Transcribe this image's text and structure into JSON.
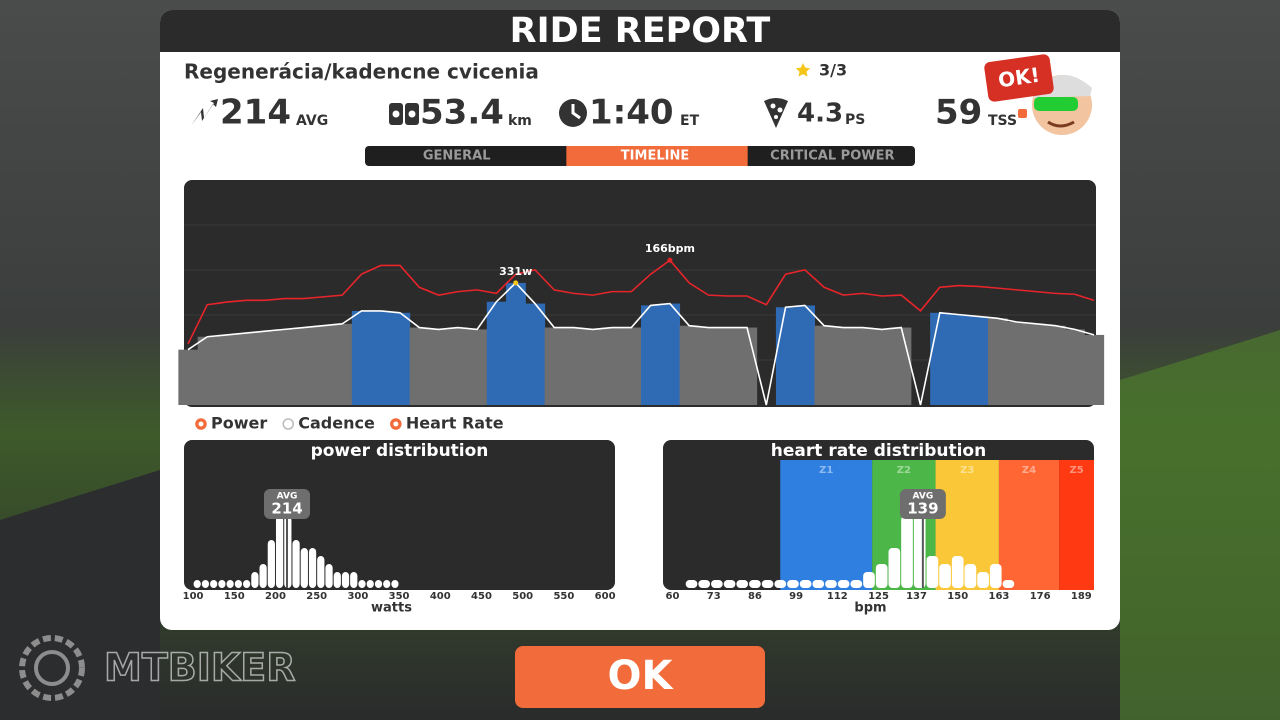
{
  "title": "RIDE REPORT",
  "ride_name": "Regenerácia/kadencne cvicenia",
  "stars": "3/3",
  "badge": "OK!",
  "stats": [
    {
      "value": 214,
      "unit": "AVG"
    },
    {
      "value": 53.4,
      "unit": "km"
    },
    {
      "value": "1:40",
      "unit": "ET"
    },
    {
      "value": 4.3,
      "unit": "PS"
    },
    {
      "value": 59,
      "unit": "TSS"
    }
  ],
  "tabs": [
    "GENERAL",
    "TIMELINE",
    "CRITICAL POWER"
  ],
  "active_tab": 1,
  "timeline": {
    "type": "line",
    "series": [
      {
        "color": "#ffffff",
        "values": [
          150,
          185,
          190,
          195,
          200,
          205,
          210,
          215,
          220,
          255,
          255,
          250,
          210,
          205,
          210,
          205,
          280,
          331,
          275,
          210,
          210,
          205,
          210,
          210,
          270,
          275,
          215,
          210,
          210,
          210,
          0,
          265,
          270,
          215,
          210,
          210,
          205,
          210,
          0,
          250,
          245,
          240,
          235,
          225,
          220,
          215,
          205,
          190
        ]
      },
      {
        "color": "#e8242b",
        "axis": "y2",
        "values": [
          70,
          115,
          118,
          120,
          120,
          122,
          122,
          124,
          126,
          150,
          160,
          160,
          135,
          126,
          130,
          132,
          128,
          150,
          155,
          132,
          128,
          126,
          130,
          130,
          150,
          166,
          140,
          126,
          125,
          125,
          115,
          150,
          155,
          135,
          126,
          128,
          125,
          126,
          108,
          135,
          137,
          136,
          134,
          132,
          130,
          128,
          127,
          120
        ]
      }
    ],
    "ylim": [
      0,
      610
    ],
    "y2lim": [
      0,
      258
    ],
    "annotations": [
      "331w",
      "166bpm"
    ]
  },
  "legend": [
    {
      "name": "Power",
      "on": true
    },
    {
      "name": "Cadence",
      "on": false
    },
    {
      "name": "Heart Rate",
      "on": true
    }
  ],
  "power_distribution": {
    "type": "histogram",
    "title": "power distribution",
    "x_label": "watts",
    "bins": [
      100,
      110,
      120,
      130,
      140,
      150,
      160,
      170,
      180,
      190,
      200,
      210,
      220,
      230,
      240,
      250,
      260,
      270,
      280,
      290,
      300,
      310,
      320,
      330,
      340,
      350
    ],
    "values": [
      1,
      1,
      1,
      1,
      1,
      1,
      1,
      2,
      3,
      6,
      9,
      9,
      6,
      5,
      5,
      4,
      3,
      2,
      2,
      2,
      1,
      1,
      1,
      1,
      1
    ],
    "xlim": [
      89,
      612
    ],
    "ylim": [
      0,
      11
    ],
    "xticks": [
      100,
      150,
      200,
      250,
      300,
      350,
      400,
      450,
      500,
      550,
      600
    ],
    "avg_label": "AVG",
    "avg": 214,
    "color": "#ffffff"
  },
  "hr_distribution": {
    "type": "histogram",
    "title": "heart rate distribution",
    "x_label": "bpm",
    "bins": [
      64,
      68,
      72,
      76,
      80,
      84,
      88,
      92,
      96,
      100,
      104,
      108,
      112,
      116,
      120,
      124,
      128,
      132,
      136,
      140,
      144,
      148,
      152,
      156,
      160,
      164,
      168
    ],
    "values": [
      1,
      1,
      1,
      1,
      1,
      1,
      1,
      1,
      1,
      1,
      1,
      1,
      1,
      1,
      2,
      3,
      5,
      9,
      9,
      4,
      3,
      4,
      3,
      2,
      3,
      1
    ],
    "xlim": [
      57,
      193
    ],
    "ylim": [
      0,
      11
    ],
    "xticks": [
      60,
      73,
      86,
      99,
      112,
      125,
      137,
      150,
      163,
      176,
      189
    ],
    "avg_label": "AVG",
    "avg": 139,
    "color": "#ffffff",
    "zones": [
      {
        "name": "Z1",
        "from": 94,
        "to": 123,
        "color": "#2f7fe0"
      },
      {
        "name": "Z2",
        "from": 123,
        "to": 143,
        "color": "#4cb748"
      },
      {
        "name": "Z3",
        "from": 143,
        "to": 163,
        "color": "#f9c737"
      },
      {
        "name": "Z4",
        "from": 163,
        "to": 182,
        "color": "#ff6633"
      },
      {
        "name": "Z5",
        "from": 182,
        "to": 193,
        "color": "#ff3a12"
      }
    ]
  },
  "button": "OK",
  "watermark": "MTBIKER"
}
